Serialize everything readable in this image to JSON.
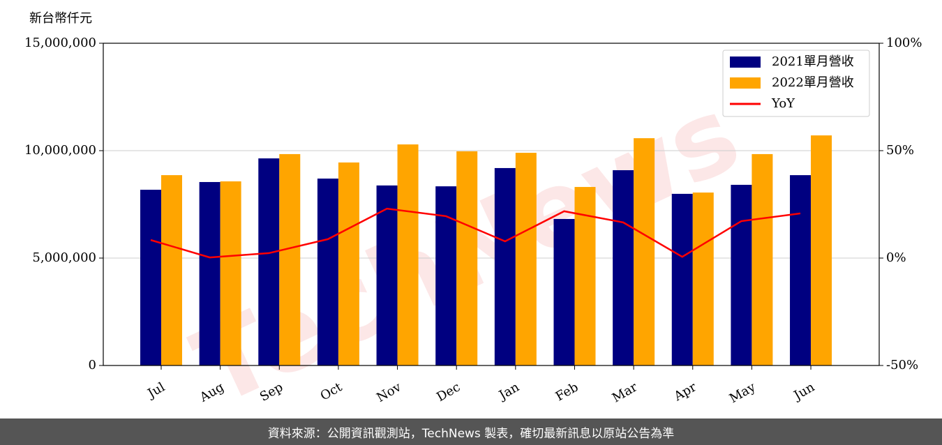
{
  "chart_data": {
    "type": "bar-line",
    "ylabel": "新台幣仟元",
    "watermark": "TechNews",
    "footer": "資料來源：公開資訊觀測站，TechNews 製表，確切最新訊息以原站公告為準",
    "categories": [
      "Jul",
      "Aug",
      "Sep",
      "Oct",
      "Nov",
      "Dec",
      "Jan",
      "Feb",
      "Mar",
      "Apr",
      "May",
      "Jun"
    ],
    "series": [
      {
        "name": "2021單月營收",
        "color": "#000080",
        "type": "bar",
        "values": [
          8180000,
          8540000,
          9640000,
          8700000,
          8380000,
          8340000,
          9190000,
          6820000,
          9090000,
          7990000,
          8410000,
          8860000
        ]
      },
      {
        "name": "2022單月營收",
        "color": "#ffa500",
        "type": "bar",
        "values": [
          8860000,
          8570000,
          9840000,
          9450000,
          10290000,
          9970000,
          9900000,
          8310000,
          10580000,
          8050000,
          9840000,
          10710000
        ]
      },
      {
        "name": "YoY",
        "color": "#ff0000",
        "type": "line",
        "axis": "y2",
        "values": [
          8.4,
          0.3,
          2.3,
          8.8,
          23,
          19.5,
          7.8,
          21.8,
          16.6,
          0.6,
          17.2,
          20.8
        ]
      }
    ],
    "ylim": [
      0,
      15000000
    ],
    "yticks": [
      {
        "value": 0,
        "label": "0"
      },
      {
        "value": 5000000,
        "label": "5,000,000"
      },
      {
        "value": 10000000,
        "label": "10,000,000"
      },
      {
        "value": 15000000,
        "label": "15,000,000"
      }
    ],
    "y2lim": [
      -50,
      100
    ],
    "y2ticks": [
      {
        "value": -50,
        "label": "-50%"
      },
      {
        "value": 0,
        "label": "0%"
      },
      {
        "value": 50,
        "label": "50%"
      },
      {
        "value": 100,
        "label": "100%"
      }
    ],
    "grid": true,
    "legend": "upper right"
  }
}
